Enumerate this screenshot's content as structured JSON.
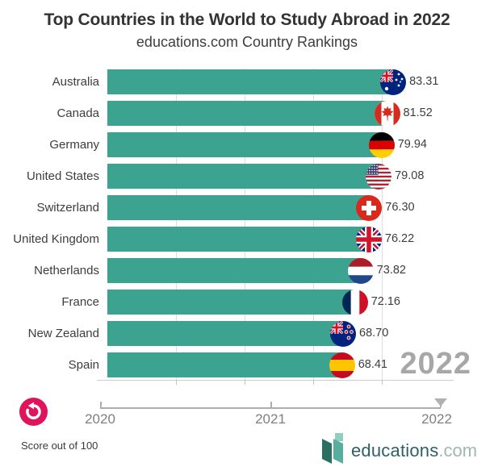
{
  "chart_data": {
    "type": "bar",
    "orientation": "horizontal",
    "title": "Top Countries in the World to Study Abroad in 2022",
    "subtitle": "educations.com Country Rankings",
    "categories": [
      "Australia",
      "Canada",
      "Germany",
      "United States",
      "Switzerland",
      "United Kingdom",
      "Netherlands",
      "France",
      "New Zealand",
      "Spain"
    ],
    "values": [
      83.31,
      81.52,
      79.94,
      79.08,
      76.3,
      76.22,
      73.82,
      72.16,
      68.7,
      68.41
    ],
    "value_labels": [
      "83.31",
      "81.52",
      "79.94",
      "79.08",
      "76.30",
      "76.22",
      "73.82",
      "72.16",
      "68.70",
      "68.41"
    ],
    "flags": [
      "au",
      "ca",
      "de",
      "us",
      "ch",
      "gb",
      "nl",
      "fr",
      "nz",
      "es"
    ],
    "xlim": [
      0,
      100
    ],
    "gridline_values": [
      20,
      40,
      60,
      80
    ],
    "grid": "vertical-lines",
    "bar_color": "#3ba38f",
    "year_label": "2022",
    "note": "Score out of 100"
  },
  "timeline": {
    "ticks": [
      "2020",
      "2021",
      "2022"
    ],
    "current_year": "2022"
  },
  "footer": {
    "note": "Score out of 100",
    "logo_text": "educations",
    "logo_suffix": ".com"
  },
  "colors": {
    "bar": "#3ba38f",
    "replay_pink": "#e0145a",
    "watermark_gray": "#a7a7a7",
    "logo_dark_teal": "#2a6e64",
    "logo_light_teal": "#56ae9e"
  }
}
